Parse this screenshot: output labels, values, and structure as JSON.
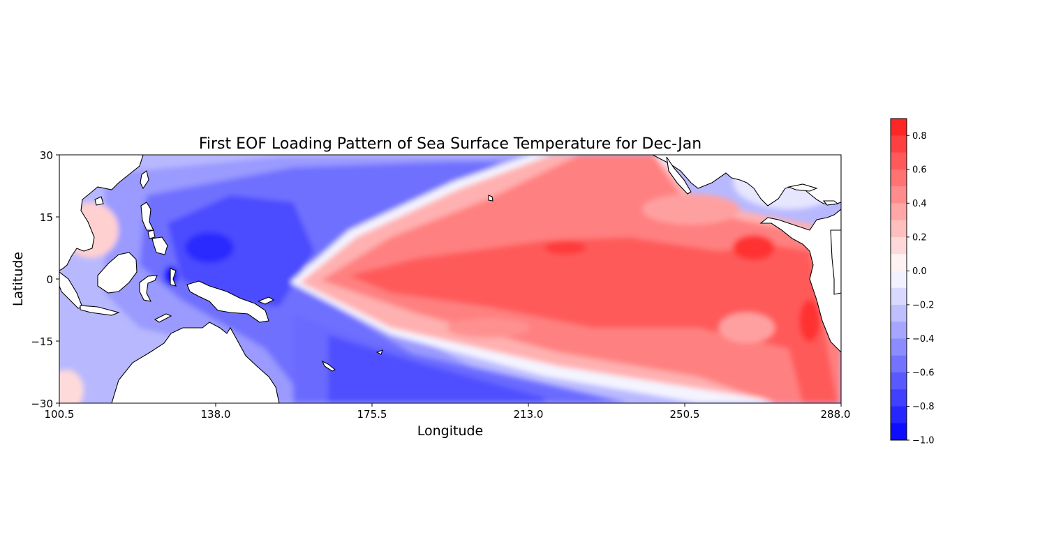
{
  "map": {
    "title": "First EOF Loading Pattern of Sea Surface Temperature for Dec-Jan",
    "xlabel": "Longitude",
    "ylabel": "Latitude",
    "x_ticks": [
      "100.5",
      "138.0",
      "175.5",
      "213.0",
      "250.5",
      "288.0"
    ],
    "y_ticks": [
      "30",
      "15",
      "0",
      "−15",
      "−30"
    ],
    "lon_range": [
      100.5,
      288.0
    ],
    "lat_range": [
      -30,
      30
    ],
    "land_color": "#ffffff",
    "coastline_color": "#000000"
  },
  "colorbar": {
    "ticks": [
      "0.8",
      "0.6",
      "0.4",
      "0.2",
      "0.0",
      "−0.2",
      "−0.4",
      "−0.6",
      "−0.8",
      "−1.0"
    ],
    "range": [
      -1.0,
      0.9
    ],
    "colormap": "bwr",
    "min_color": "#0000ff",
    "mid_color": "#ffffff",
    "max_color": "#ff0000"
  }
}
